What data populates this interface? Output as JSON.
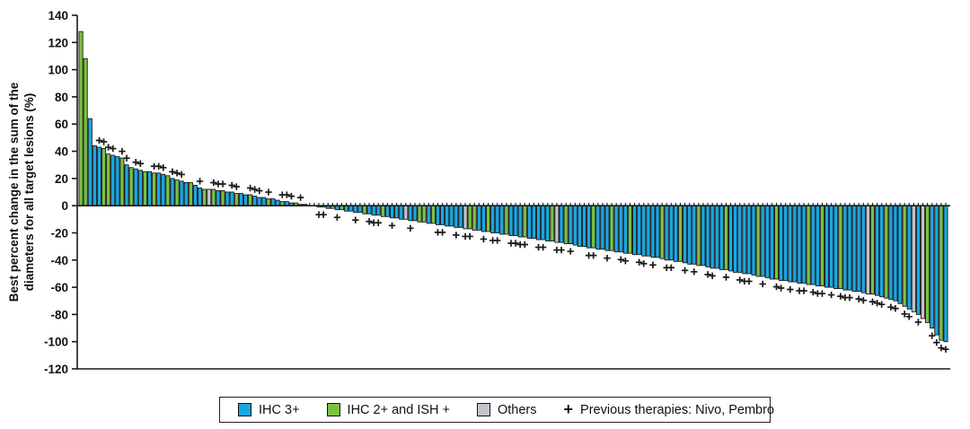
{
  "y_axis": {
    "title_line1": "Best percent change in the sum of the",
    "title_line2": "diameters for all target lesions (%)",
    "ticks": [
      140,
      120,
      100,
      80,
      60,
      40,
      20,
      0,
      -20,
      -40,
      -60,
      -80,
      -100,
      -120
    ]
  },
  "legend": {
    "marker_symbol": "+",
    "items": [
      {
        "label": "IHC 3+",
        "color_key": "ihc3"
      },
      {
        "label": "IHC 2+ and ISH +",
        "color_key": "ihc2ish"
      },
      {
        "label": "Others",
        "color_key": "other"
      },
      {
        "label": "Previous therapies: Nivo, Pembro"
      }
    ]
  },
  "chart_data": {
    "type": "bar",
    "subtype": "waterfall",
    "title": "",
    "xlabel": "",
    "ylabel": "Best percent change in the sum of the diameters for all target lesions (%)",
    "ylim": [
      -120,
      140
    ],
    "yticks": [
      140,
      120,
      100,
      80,
      60,
      40,
      20,
      0,
      -20,
      -40,
      -60,
      -80,
      -100,
      -120
    ],
    "grid": false,
    "legend_position": "bottom",
    "colors": {
      "ihc3": "#1aa7e3",
      "ihc2ish": "#7cc142",
      "other": "#c6c3cc",
      "axis": "#1a1a1a"
    },
    "color_key_map": {
      "b": "ihc3",
      "g": "ihc2ish",
      "o": "other"
    },
    "marker_meaning": "Previous therapies: Nivo, Pembro",
    "bars": [
      [
        128,
        "g",
        0
      ],
      [
        108,
        "g",
        0
      ],
      [
        64,
        "b",
        0
      ],
      [
        44,
        "b",
        0
      ],
      [
        43,
        "b",
        1
      ],
      [
        42,
        "g",
        1
      ],
      [
        38,
        "g",
        1
      ],
      [
        37,
        "b",
        1
      ],
      [
        36,
        "b",
        0
      ],
      [
        35,
        "g",
        1
      ],
      [
        30,
        "b",
        1
      ],
      [
        28,
        "g",
        0
      ],
      [
        27,
        "b",
        1
      ],
      [
        26,
        "b",
        1
      ],
      [
        25,
        "g",
        0
      ],
      [
        25,
        "b",
        0
      ],
      [
        24,
        "g",
        1
      ],
      [
        24,
        "b",
        1
      ],
      [
        23,
        "b",
        1
      ],
      [
        22,
        "g",
        0
      ],
      [
        20,
        "b",
        1
      ],
      [
        19,
        "g",
        1
      ],
      [
        18,
        "b",
        1
      ],
      [
        17,
        "b",
        0
      ],
      [
        17,
        "g",
        0
      ],
      [
        15,
        "b",
        0
      ],
      [
        13,
        "b",
        1
      ],
      [
        12,
        "g",
        0
      ],
      [
        12,
        "o",
        0
      ],
      [
        12,
        "g",
        1
      ],
      [
        11,
        "b",
        1
      ],
      [
        11,
        "g",
        1
      ],
      [
        10,
        "b",
        0
      ],
      [
        10,
        "b",
        1
      ],
      [
        9,
        "g",
        1
      ],
      [
        9,
        "b",
        0
      ],
      [
        8,
        "b",
        0
      ],
      [
        8,
        "g",
        1
      ],
      [
        7,
        "b",
        1
      ],
      [
        6,
        "b",
        1
      ],
      [
        6,
        "b",
        0
      ],
      [
        5,
        "g",
        1
      ],
      [
        5,
        "b",
        0
      ],
      [
        4,
        "b",
        0
      ],
      [
        3,
        "g",
        1
      ],
      [
        3,
        "b",
        1
      ],
      [
        2,
        "b",
        1
      ],
      [
        2,
        "g",
        0
      ],
      [
        1,
        "b",
        1
      ],
      [
        1,
        "b",
        0
      ],
      [
        0,
        "b",
        0
      ],
      [
        0,
        "b",
        0
      ],
      [
        -1,
        "g",
        1
      ],
      [
        -1,
        "g",
        1
      ],
      [
        -2,
        "b",
        0
      ],
      [
        -2,
        "g",
        0
      ],
      [
        -3,
        "b",
        1
      ],
      [
        -3,
        "g",
        0
      ],
      [
        -4,
        "b",
        0
      ],
      [
        -4,
        "b",
        0
      ],
      [
        -5,
        "b",
        1
      ],
      [
        -5,
        "b",
        0
      ],
      [
        -6,
        "g",
        0
      ],
      [
        -6,
        "b",
        1
      ],
      [
        -7,
        "b",
        1
      ],
      [
        -7,
        "b",
        1
      ],
      [
        -8,
        "g",
        0
      ],
      [
        -8,
        "b",
        0
      ],
      [
        -9,
        "b",
        1
      ],
      [
        -9,
        "b",
        0
      ],
      [
        -10,
        "b",
        0
      ],
      [
        -10,
        "o",
        0
      ],
      [
        -11,
        "b",
        1
      ],
      [
        -11,
        "b",
        0
      ],
      [
        -12,
        "g",
        0
      ],
      [
        -12,
        "g",
        0
      ],
      [
        -13,
        "b",
        0
      ],
      [
        -13,
        "g",
        0
      ],
      [
        -14,
        "b",
        1
      ],
      [
        -14,
        "b",
        1
      ],
      [
        -15,
        "b",
        0
      ],
      [
        -15,
        "b",
        0
      ],
      [
        -16,
        "b",
        1
      ],
      [
        -16,
        "b",
        0
      ],
      [
        -17,
        "o",
        1
      ],
      [
        -17,
        "g",
        1
      ],
      [
        -18,
        "g",
        0
      ],
      [
        -18,
        "b",
        0
      ],
      [
        -19,
        "b",
        1
      ],
      [
        -19,
        "g",
        0
      ],
      [
        -20,
        "b",
        1
      ],
      [
        -20,
        "b",
        1
      ],
      [
        -21,
        "b",
        0
      ],
      [
        -21,
        "g",
        0
      ],
      [
        -22,
        "b",
        1
      ],
      [
        -22,
        "b",
        1
      ],
      [
        -23,
        "b",
        1
      ],
      [
        -23,
        "g",
        1
      ],
      [
        -24,
        "b",
        0
      ],
      [
        -24,
        "b",
        0
      ],
      [
        -25,
        "b",
        1
      ],
      [
        -25,
        "b",
        1
      ],
      [
        -26,
        "b",
        0
      ],
      [
        -26,
        "g",
        0
      ],
      [
        -27,
        "o",
        1
      ],
      [
        -27,
        "b",
        1
      ],
      [
        -28,
        "g",
        0
      ],
      [
        -28,
        "b",
        1
      ],
      [
        -29,
        "b",
        0
      ],
      [
        -30,
        "b",
        0
      ],
      [
        -30,
        "b",
        0
      ],
      [
        -31,
        "b",
        1
      ],
      [
        -31,
        "g",
        1
      ],
      [
        -32,
        "b",
        0
      ],
      [
        -32,
        "b",
        0
      ],
      [
        -33,
        "b",
        1
      ],
      [
        -33,
        "g",
        0
      ],
      [
        -34,
        "b",
        0
      ],
      [
        -34,
        "b",
        1
      ],
      [
        -35,
        "b",
        1
      ],
      [
        -35,
        "g",
        0
      ],
      [
        -36,
        "b",
        0
      ],
      [
        -36,
        "b",
        1
      ],
      [
        -37,
        "b",
        1
      ],
      [
        -37,
        "b",
        0
      ],
      [
        -38,
        "b",
        1
      ],
      [
        -38,
        "b",
        0
      ],
      [
        -39,
        "g",
        0
      ],
      [
        -40,
        "b",
        1
      ],
      [
        -40,
        "b",
        1
      ],
      [
        -41,
        "b",
        0
      ],
      [
        -41,
        "g",
        0
      ],
      [
        -42,
        "b",
        1
      ],
      [
        -43,
        "b",
        0
      ],
      [
        -43,
        "b",
        1
      ],
      [
        -44,
        "g",
        0
      ],
      [
        -44,
        "b",
        0
      ],
      [
        -45,
        "b",
        1
      ],
      [
        -46,
        "b",
        1
      ],
      [
        -46,
        "b",
        0
      ],
      [
        -47,
        "b",
        0
      ],
      [
        -47,
        "g",
        1
      ],
      [
        -48,
        "b",
        0
      ],
      [
        -49,
        "b",
        0
      ],
      [
        -49,
        "b",
        1
      ],
      [
        -50,
        "b",
        1
      ],
      [
        -50,
        "b",
        1
      ],
      [
        -51,
        "b",
        0
      ],
      [
        -52,
        "g",
        0
      ],
      [
        -52,
        "b",
        1
      ],
      [
        -53,
        "b",
        0
      ],
      [
        -54,
        "b",
        0
      ],
      [
        -54,
        "g",
        1
      ],
      [
        -55,
        "b",
        1
      ],
      [
        -55,
        "b",
        0
      ],
      [
        -56,
        "b",
        1
      ],
      [
        -56,
        "b",
        0
      ],
      [
        -57,
        "b",
        1
      ],
      [
        -57,
        "b",
        1
      ],
      [
        -58,
        "g",
        0
      ],
      [
        -58,
        "b",
        1
      ],
      [
        -59,
        "b",
        1
      ],
      [
        -59,
        "g",
        1
      ],
      [
        -60,
        "b",
        0
      ],
      [
        -60,
        "b",
        1
      ],
      [
        -61,
        "b",
        0
      ],
      [
        -61,
        "g",
        1
      ],
      [
        -62,
        "b",
        1
      ],
      [
        -62,
        "b",
        1
      ],
      [
        -63,
        "b",
        0
      ],
      [
        -63,
        "b",
        1
      ],
      [
        -64,
        "b",
        1
      ],
      [
        -65,
        "o",
        0
      ],
      [
        -65,
        "g",
        1
      ],
      [
        -66,
        "b",
        1
      ],
      [
        -67,
        "b",
        1
      ],
      [
        -68,
        "g",
        0
      ],
      [
        -69,
        "b",
        1
      ],
      [
        -70,
        "b",
        1
      ],
      [
        -72,
        "b",
        0
      ],
      [
        -74,
        "g",
        1
      ],
      [
        -76,
        "b",
        1
      ],
      [
        -78,
        "o",
        0
      ],
      [
        -80,
        "b",
        1
      ],
      [
        -83,
        "o",
        0
      ],
      [
        -86,
        "g",
        0
      ],
      [
        -90,
        "b",
        1
      ],
      [
        -95,
        "b",
        1
      ],
      [
        -99,
        "g",
        1
      ],
      [
        -100,
        "b",
        1
      ]
    ]
  }
}
